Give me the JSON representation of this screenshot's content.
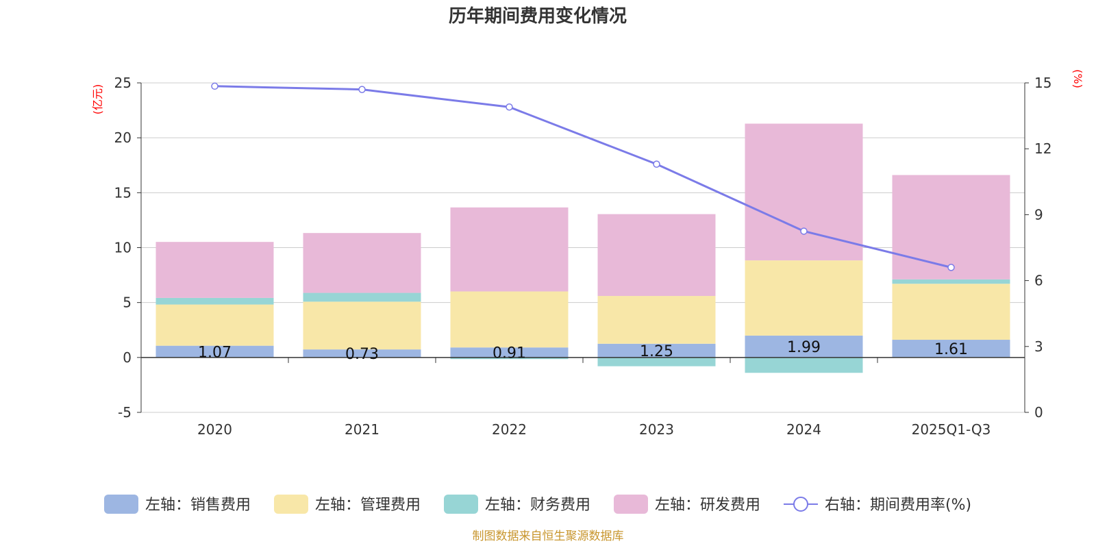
{
  "chart_data": {
    "type": "bar",
    "title": "历年期间费用变化情况",
    "categories": [
      "2020",
      "2021",
      "2022",
      "2023",
      "2024",
      "2025Q1-Q3"
    ],
    "left_axis": {
      "unit": "(亿元)",
      "min": -5,
      "max": 25,
      "ticks": [
        -5,
        0,
        5,
        10,
        15,
        20,
        25
      ]
    },
    "right_axis": {
      "unit": "(%)",
      "min": 0,
      "max": 15,
      "ticks": [
        0,
        3,
        6,
        9,
        12,
        15
      ]
    },
    "series": [
      {
        "name": "销售费用",
        "legend": "左轴：销售费用",
        "axis": "left",
        "color": "#9db6e2",
        "values": [
          1.07,
          0.73,
          0.91,
          1.25,
          1.99,
          1.61
        ]
      },
      {
        "name": "管理费用",
        "legend": "左轴：管理费用",
        "axis": "left",
        "color": "#f8e7a8",
        "values": [
          3.75,
          4.35,
          5.1,
          4.35,
          6.85,
          5.1
        ]
      },
      {
        "name": "财务费用",
        "legend": "左轴：财务费用",
        "axis": "left",
        "color": "#97d5d5",
        "values": [
          0.6,
          0.8,
          -0.15,
          -0.8,
          -1.4,
          0.4
        ]
      },
      {
        "name": "研发费用",
        "legend": "左轴：研发费用",
        "axis": "left",
        "color": "#e8b9d8",
        "values": [
          5.1,
          5.45,
          7.65,
          7.45,
          12.45,
          9.5
        ]
      },
      {
        "name": "期间费用率(%)",
        "legend": "右轴：期间费用率(%)",
        "axis": "right",
        "type": "line",
        "color": "#7b7be8",
        "values": [
          14.85,
          14.7,
          13.9,
          11.3,
          8.25,
          6.6
        ]
      }
    ],
    "bar_labels": [
      "1.07",
      "0.73",
      "0.91",
      "1.25",
      "1.99",
      "1.61"
    ],
    "grid": true,
    "legend_position": "bottom"
  },
  "source_note": "制图数据来自恒生聚源数据库"
}
